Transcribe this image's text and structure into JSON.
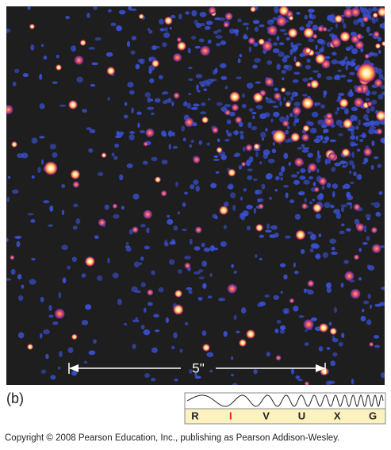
{
  "scale_bar": {
    "label": "5\""
  },
  "panel_label": "(b)",
  "spectrum": {
    "bands": [
      "R",
      "I",
      "V",
      "U",
      "X",
      "G"
    ],
    "highlighted": "I"
  },
  "copyright": "Copyright © 2008 Pearson Education, Inc., publishing as Pearson Addison-Wesley."
}
